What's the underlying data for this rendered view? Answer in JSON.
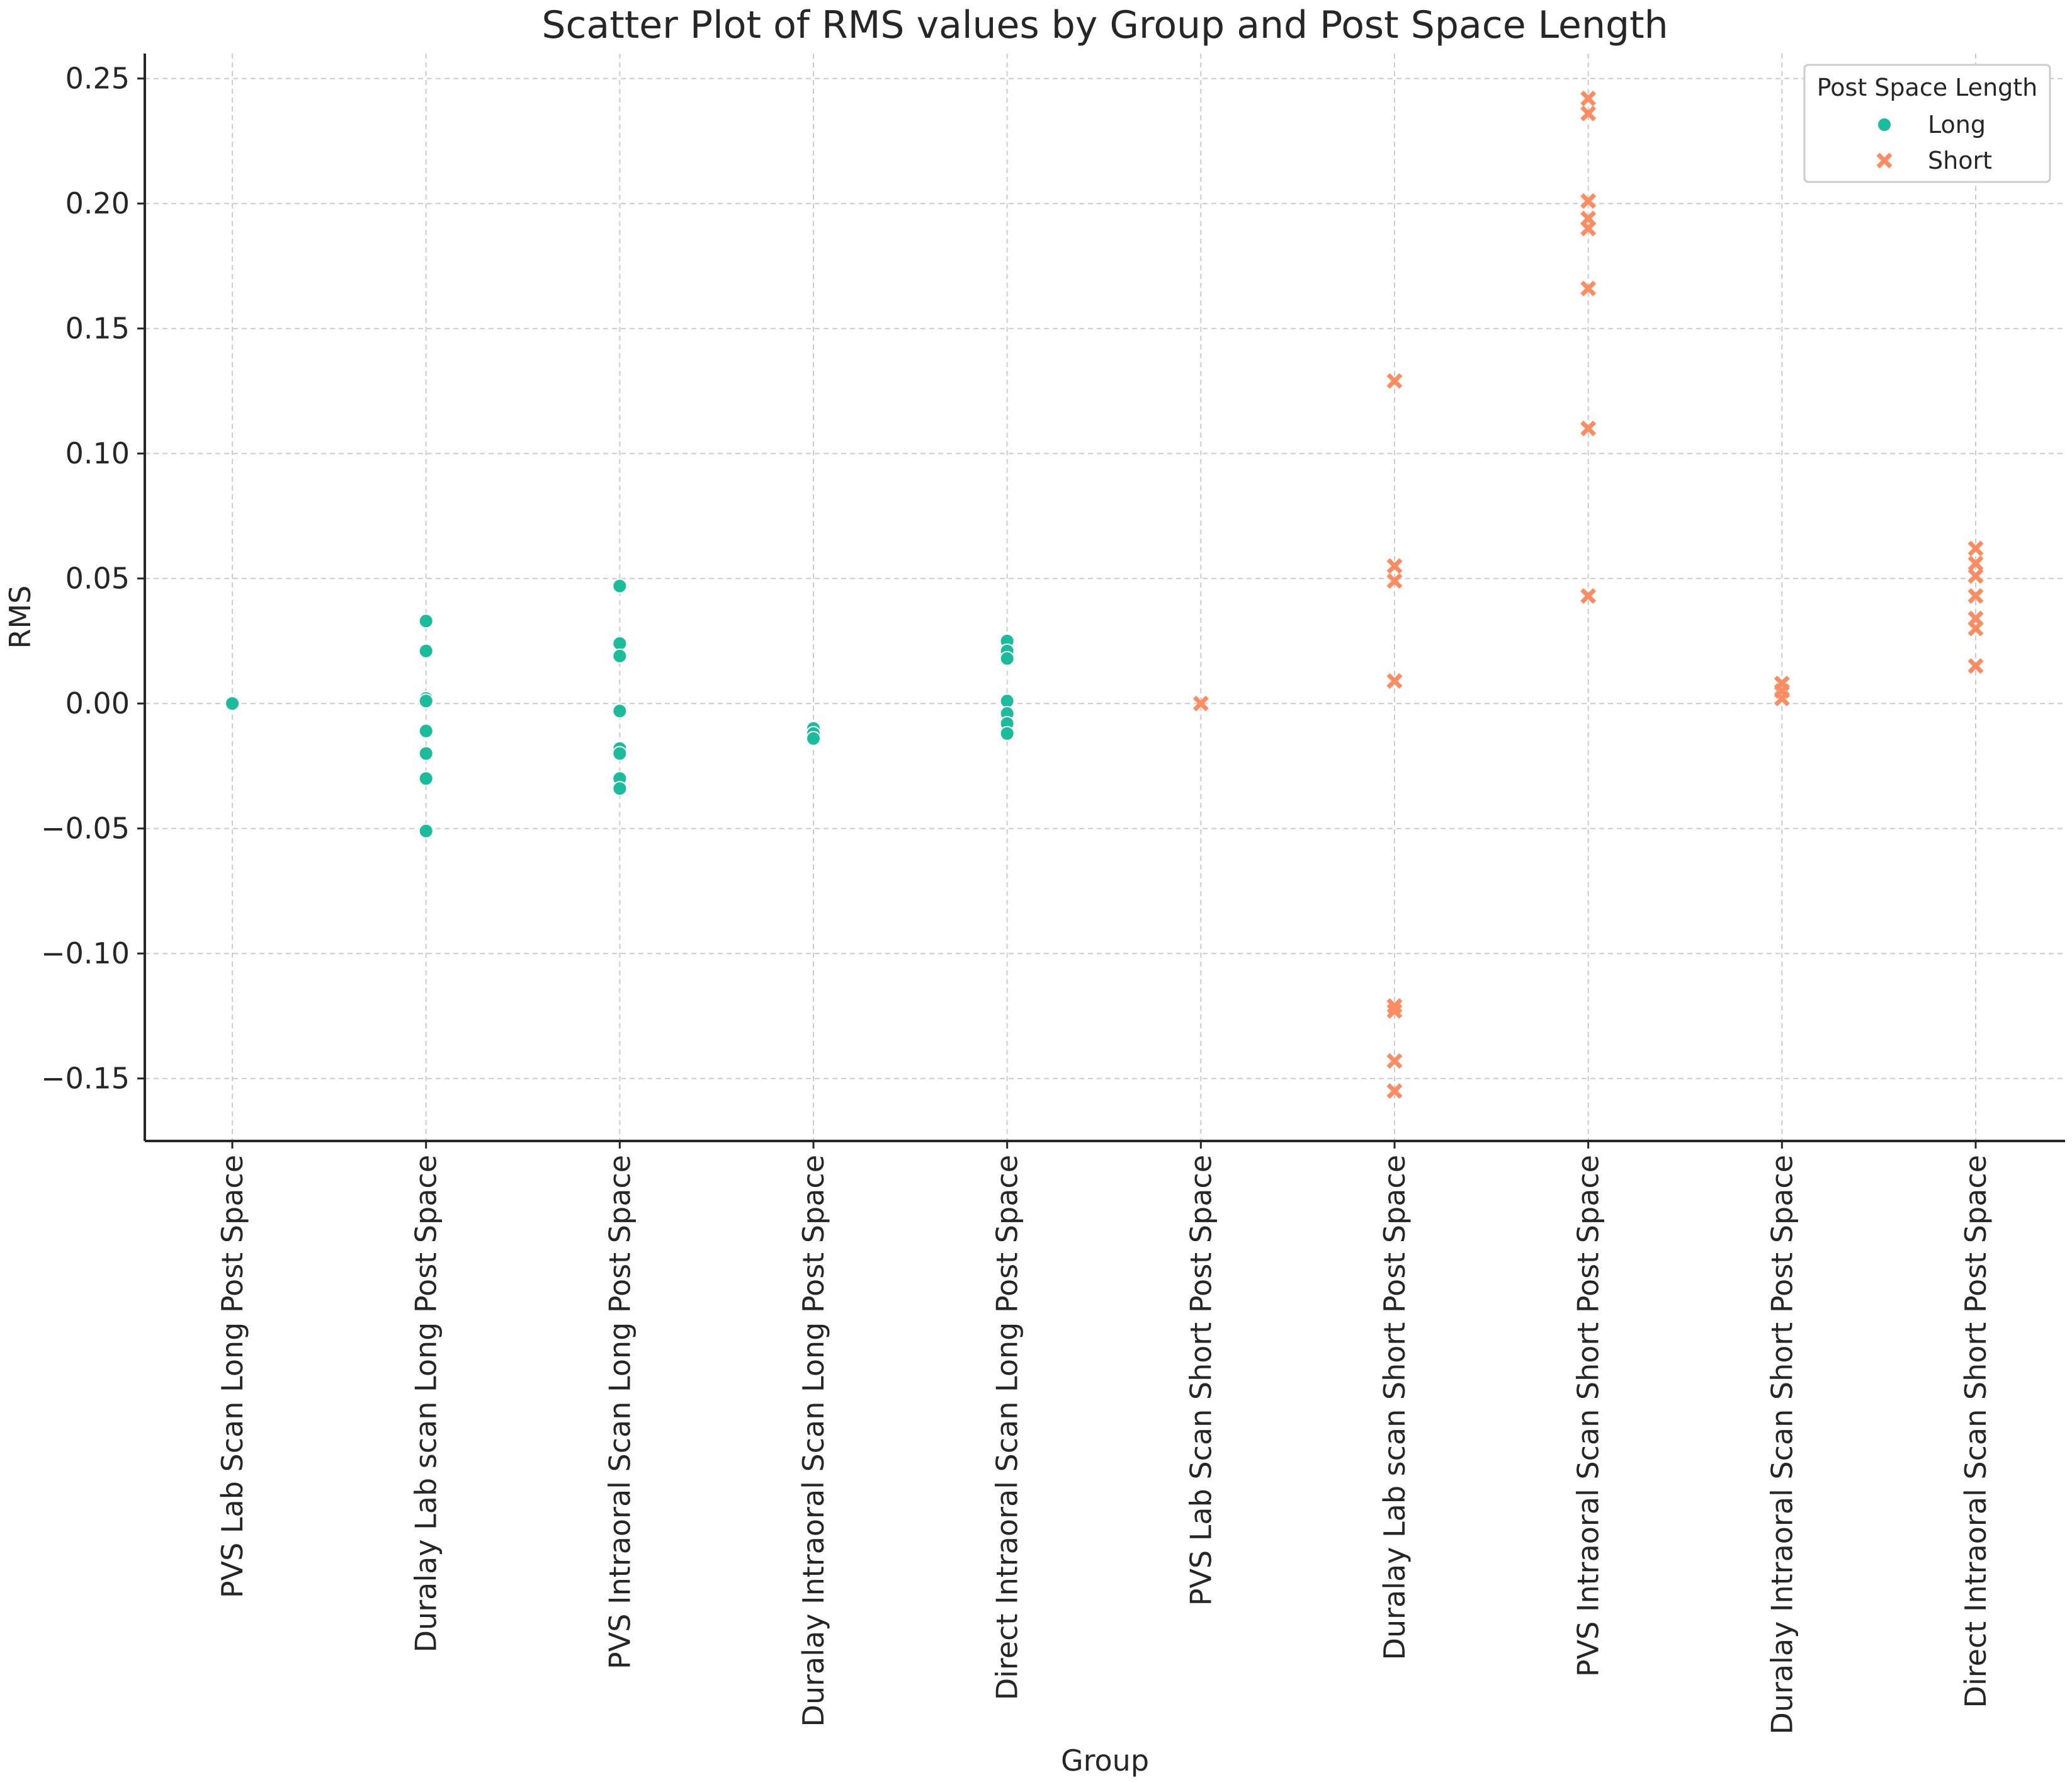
{
  "chart_data": {
    "type": "scatter",
    "title": "Scatter Plot of RMS values by Group and Post Space Length",
    "xlabel": "Group",
    "ylabel": "RMS",
    "ylim": [
      -0.175,
      0.26
    ],
    "yticks": [
      -0.15,
      -0.1,
      -0.05,
      0.0,
      0.05,
      0.1,
      0.15,
      0.2,
      0.25
    ],
    "ytick_labels": [
      "−0.15",
      "−0.10",
      "−0.05",
      "0.00",
      "0.05",
      "0.10",
      "0.15",
      "0.20",
      "0.25"
    ],
    "grid": true,
    "legend_position": "top-right",
    "legend_title": "Post Space Length",
    "categories": [
      "PVS Lab Scan Long Post Space",
      "Duralay Lab scan Long Post Space",
      "PVS Intraoral Scan Long Post Space",
      "Duralay Intraoral Scan Long Post Space",
      "Direct Intraoral Scan Long Post Space",
      "PVS Lab Scan Short Post Space",
      "Duralay Lab scan Short Post Space",
      "PVS Intraoral Scan Short Post Space",
      "Duralay Intraoral Scan Short Post Space",
      "Direct Intraoral Scan Short Post Space"
    ],
    "series": [
      {
        "name": "Long",
        "marker": "circle",
        "color": "#1abc9c",
        "points": [
          {
            "group": 0,
            "values": [
              0.0
            ]
          },
          {
            "group": 1,
            "values": [
              0.033,
              0.021,
              0.002,
              0.001,
              -0.011,
              -0.02,
              -0.03,
              -0.051
            ]
          },
          {
            "group": 2,
            "values": [
              0.047,
              0.024,
              0.019,
              -0.003,
              -0.018,
              -0.02,
              -0.03,
              -0.034
            ]
          },
          {
            "group": 3,
            "values": [
              -0.01,
              -0.012,
              -0.014
            ]
          },
          {
            "group": 4,
            "values": [
              0.025,
              0.021,
              0.018,
              0.001,
              -0.004,
              -0.008,
              -0.012
            ]
          }
        ]
      },
      {
        "name": "Short",
        "marker": "x",
        "color": "#fc8d62",
        "points": [
          {
            "group": 5,
            "values": [
              0.0
            ]
          },
          {
            "group": 6,
            "values": [
              0.129,
              0.055,
              0.049,
              0.009,
              -0.121,
              -0.123,
              -0.143,
              -0.155
            ]
          },
          {
            "group": 7,
            "values": [
              0.242,
              0.236,
              0.201,
              0.194,
              0.19,
              0.166,
              0.11,
              0.043
            ]
          },
          {
            "group": 8,
            "values": [
              0.008,
              0.005,
              0.002
            ]
          },
          {
            "group": 9,
            "values": [
              0.062,
              0.056,
              0.051,
              0.043,
              0.034,
              0.03,
              0.015
            ]
          }
        ]
      }
    ]
  }
}
